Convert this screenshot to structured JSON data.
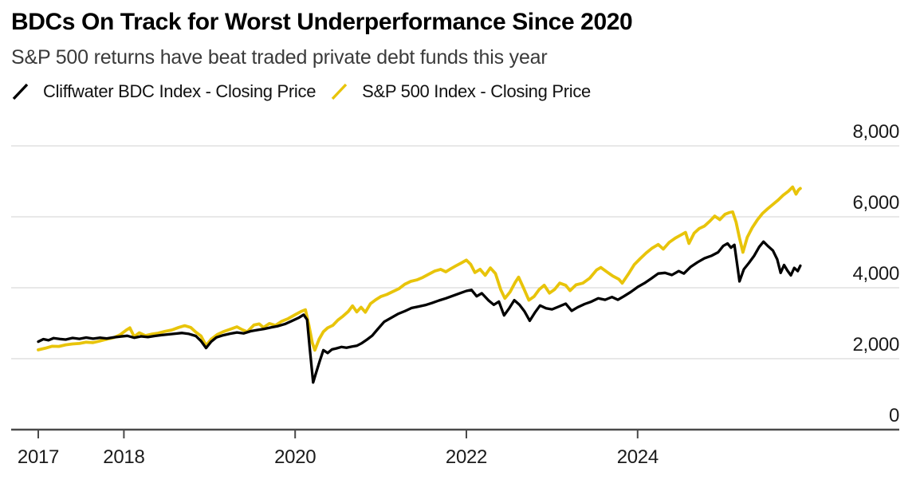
{
  "header": {
    "title": "BDCs On Track for Worst Underperformance Since 2020",
    "subtitle": "S&P 500 returns have beat traded private debt funds this year"
  },
  "legend": [
    {
      "label": "Cliffwater BDC Index - Closing Price",
      "color": "#000000"
    },
    {
      "label": "S&P 500 Index - Closing Price",
      "color": "#E8C40A"
    }
  ],
  "chart_data": {
    "type": "line",
    "title": "BDCs On Track for Worst Underperformance Since 2020",
    "subtitle": "S&P 500 returns have beat traded private debt funds this year",
    "xlabel": "",
    "ylabel": "",
    "grid": "horizontal",
    "legend_position": "top",
    "xlim": [
      2016.65,
      2027.05
    ],
    "ylim": [
      0,
      8000
    ],
    "axis_colors": {
      "gridline": "#DBDBDB",
      "baseline": "#4a4a4a",
      "tick_text": "#1b1b1b"
    },
    "y_ticks": [
      {
        "value": 0,
        "label": "0"
      },
      {
        "value": 2000,
        "label": "2,000"
      },
      {
        "value": 4000,
        "label": "4,000"
      },
      {
        "value": 6000,
        "label": "6,000"
      },
      {
        "value": 8000,
        "label": "8,000"
      }
    ],
    "x_ticks": [
      {
        "value": 2017,
        "label": "2017"
      },
      {
        "value": 2018,
        "label": "2018"
      },
      {
        "value": 2020,
        "label": "2020"
      },
      {
        "value": 2022,
        "label": "2022"
      },
      {
        "value": 2024,
        "label": "2024"
      }
    ],
    "series": [
      {
        "name": "S&P 500 Index - Closing Price",
        "color": "#E8C40A",
        "width": 3.8,
        "points": [
          [
            2017.0,
            2250
          ],
          [
            2017.08,
            2295
          ],
          [
            2017.16,
            2350
          ],
          [
            2017.24,
            2345
          ],
          [
            2017.32,
            2390
          ],
          [
            2017.4,
            2415
          ],
          [
            2017.48,
            2430
          ],
          [
            2017.56,
            2465
          ],
          [
            2017.64,
            2455
          ],
          [
            2017.72,
            2500
          ],
          [
            2017.8,
            2550
          ],
          [
            2017.88,
            2590
          ],
          [
            2017.96,
            2680
          ],
          [
            2018.03,
            2810
          ],
          [
            2018.07,
            2870
          ],
          [
            2018.12,
            2620
          ],
          [
            2018.18,
            2730
          ],
          [
            2018.25,
            2650
          ],
          [
            2018.32,
            2690
          ],
          [
            2018.4,
            2720
          ],
          [
            2018.48,
            2770
          ],
          [
            2018.56,
            2810
          ],
          [
            2018.64,
            2880
          ],
          [
            2018.71,
            2930
          ],
          [
            2018.78,
            2880
          ],
          [
            2018.84,
            2750
          ],
          [
            2018.9,
            2640
          ],
          [
            2018.96,
            2370
          ],
          [
            2019.02,
            2550
          ],
          [
            2019.09,
            2680
          ],
          [
            2019.16,
            2760
          ],
          [
            2019.24,
            2830
          ],
          [
            2019.32,
            2900
          ],
          [
            2019.38,
            2820
          ],
          [
            2019.44,
            2760
          ],
          [
            2019.52,
            2950
          ],
          [
            2019.58,
            2980
          ],
          [
            2019.63,
            2880
          ],
          [
            2019.7,
            2990
          ],
          [
            2019.77,
            2940
          ],
          [
            2019.84,
            3050
          ],
          [
            2019.92,
            3130
          ],
          [
            2020.0,
            3240
          ],
          [
            2020.07,
            3330
          ],
          [
            2020.12,
            3380
          ],
          [
            2020.16,
            2950
          ],
          [
            2020.2,
            2450
          ],
          [
            2020.23,
            2240
          ],
          [
            2020.28,
            2550
          ],
          [
            2020.33,
            2760
          ],
          [
            2020.38,
            2870
          ],
          [
            2020.44,
            2940
          ],
          [
            2020.5,
            3090
          ],
          [
            2020.56,
            3200
          ],
          [
            2020.62,
            3330
          ],
          [
            2020.67,
            3490
          ],
          [
            2020.72,
            3320
          ],
          [
            2020.77,
            3450
          ],
          [
            2020.82,
            3310
          ],
          [
            2020.88,
            3550
          ],
          [
            2020.94,
            3660
          ],
          [
            2021.0,
            3750
          ],
          [
            2021.07,
            3810
          ],
          [
            2021.14,
            3890
          ],
          [
            2021.21,
            3970
          ],
          [
            2021.28,
            4100
          ],
          [
            2021.35,
            4180
          ],
          [
            2021.42,
            4220
          ],
          [
            2021.49,
            4290
          ],
          [
            2021.56,
            4380
          ],
          [
            2021.63,
            4470
          ],
          [
            2021.7,
            4520
          ],
          [
            2021.76,
            4450
          ],
          [
            2021.82,
            4540
          ],
          [
            2021.88,
            4620
          ],
          [
            2021.94,
            4700
          ],
          [
            2022.0,
            4780
          ],
          [
            2022.05,
            4660
          ],
          [
            2022.1,
            4430
          ],
          [
            2022.16,
            4520
          ],
          [
            2022.22,
            4350
          ],
          [
            2022.28,
            4560
          ],
          [
            2022.34,
            4400
          ],
          [
            2022.4,
            3950
          ],
          [
            2022.45,
            3700
          ],
          [
            2022.51,
            3880
          ],
          [
            2022.57,
            4150
          ],
          [
            2022.61,
            4300
          ],
          [
            2022.67,
            3980
          ],
          [
            2022.73,
            3650
          ],
          [
            2022.79,
            3750
          ],
          [
            2022.85,
            3950
          ],
          [
            2022.91,
            4070
          ],
          [
            2022.97,
            3850
          ],
          [
            2023.03,
            3950
          ],
          [
            2023.09,
            4130
          ],
          [
            2023.16,
            4070
          ],
          [
            2023.21,
            3920
          ],
          [
            2023.28,
            4080
          ],
          [
            2023.36,
            4130
          ],
          [
            2023.44,
            4270
          ],
          [
            2023.52,
            4500
          ],
          [
            2023.57,
            4570
          ],
          [
            2023.64,
            4450
          ],
          [
            2023.71,
            4330
          ],
          [
            2023.78,
            4240
          ],
          [
            2023.82,
            4130
          ],
          [
            2023.89,
            4380
          ],
          [
            2023.96,
            4650
          ],
          [
            2024.03,
            4820
          ],
          [
            2024.1,
            4980
          ],
          [
            2024.17,
            5120
          ],
          [
            2024.24,
            5220
          ],
          [
            2024.3,
            5090
          ],
          [
            2024.37,
            5280
          ],
          [
            2024.44,
            5400
          ],
          [
            2024.5,
            5480
          ],
          [
            2024.56,
            5560
          ],
          [
            2024.6,
            5250
          ],
          [
            2024.66,
            5540
          ],
          [
            2024.72,
            5670
          ],
          [
            2024.78,
            5740
          ],
          [
            2024.84,
            5870
          ],
          [
            2024.9,
            6020
          ],
          [
            2024.96,
            5920
          ],
          [
            2025.02,
            6070
          ],
          [
            2025.07,
            6120
          ],
          [
            2025.11,
            6140
          ],
          [
            2025.15,
            5850
          ],
          [
            2025.19,
            5400
          ],
          [
            2025.23,
            5000
          ],
          [
            2025.28,
            5420
          ],
          [
            2025.34,
            5700
          ],
          [
            2025.4,
            5920
          ],
          [
            2025.46,
            6100
          ],
          [
            2025.52,
            6230
          ],
          [
            2025.58,
            6350
          ],
          [
            2025.64,
            6470
          ],
          [
            2025.7,
            6610
          ],
          [
            2025.76,
            6720
          ],
          [
            2025.81,
            6840
          ],
          [
            2025.85,
            6640
          ],
          [
            2025.88,
            6760
          ],
          [
            2025.9,
            6800
          ]
        ]
      },
      {
        "name": "Cliffwater BDC Index - Closing Price",
        "color": "#000000",
        "width": 3.3,
        "points": [
          [
            2017.0,
            2480
          ],
          [
            2017.06,
            2550
          ],
          [
            2017.12,
            2520
          ],
          [
            2017.18,
            2580
          ],
          [
            2017.25,
            2555
          ],
          [
            2017.32,
            2540
          ],
          [
            2017.4,
            2585
          ],
          [
            2017.48,
            2560
          ],
          [
            2017.56,
            2595
          ],
          [
            2017.64,
            2565
          ],
          [
            2017.72,
            2590
          ],
          [
            2017.8,
            2570
          ],
          [
            2017.88,
            2600
          ],
          [
            2017.96,
            2625
          ],
          [
            2018.04,
            2645
          ],
          [
            2018.12,
            2590
          ],
          [
            2018.2,
            2630
          ],
          [
            2018.28,
            2610
          ],
          [
            2018.36,
            2640
          ],
          [
            2018.44,
            2665
          ],
          [
            2018.52,
            2685
          ],
          [
            2018.6,
            2705
          ],
          [
            2018.68,
            2725
          ],
          [
            2018.76,
            2700
          ],
          [
            2018.84,
            2640
          ],
          [
            2018.9,
            2500
          ],
          [
            2018.96,
            2300
          ],
          [
            2019.02,
            2480
          ],
          [
            2019.08,
            2600
          ],
          [
            2019.16,
            2660
          ],
          [
            2019.24,
            2705
          ],
          [
            2019.32,
            2740
          ],
          [
            2019.4,
            2715
          ],
          [
            2019.48,
            2775
          ],
          [
            2019.56,
            2810
          ],
          [
            2019.64,
            2840
          ],
          [
            2019.72,
            2880
          ],
          [
            2019.8,
            2920
          ],
          [
            2019.88,
            2975
          ],
          [
            2019.96,
            3060
          ],
          [
            2020.04,
            3150
          ],
          [
            2020.1,
            3240
          ],
          [
            2020.14,
            3100
          ],
          [
            2020.17,
            2300
          ],
          [
            2020.21,
            1330
          ],
          [
            2020.25,
            1650
          ],
          [
            2020.29,
            1950
          ],
          [
            2020.33,
            2240
          ],
          [
            2020.38,
            2160
          ],
          [
            2020.43,
            2260
          ],
          [
            2020.48,
            2290
          ],
          [
            2020.54,
            2330
          ],
          [
            2020.6,
            2310
          ],
          [
            2020.66,
            2340
          ],
          [
            2020.72,
            2365
          ],
          [
            2020.78,
            2440
          ],
          [
            2020.84,
            2540
          ],
          [
            2020.9,
            2650
          ],
          [
            2020.96,
            2820
          ],
          [
            2021.04,
            3040
          ],
          [
            2021.12,
            3150
          ],
          [
            2021.2,
            3260
          ],
          [
            2021.28,
            3340
          ],
          [
            2021.36,
            3430
          ],
          [
            2021.44,
            3470
          ],
          [
            2021.52,
            3510
          ],
          [
            2021.6,
            3570
          ],
          [
            2021.68,
            3640
          ],
          [
            2021.76,
            3700
          ],
          [
            2021.84,
            3770
          ],
          [
            2021.92,
            3840
          ],
          [
            2022.0,
            3910
          ],
          [
            2022.06,
            3940
          ],
          [
            2022.12,
            3760
          ],
          [
            2022.18,
            3845
          ],
          [
            2022.26,
            3640
          ],
          [
            2022.32,
            3520
          ],
          [
            2022.38,
            3610
          ],
          [
            2022.44,
            3220
          ],
          [
            2022.5,
            3420
          ],
          [
            2022.56,
            3650
          ],
          [
            2022.62,
            3520
          ],
          [
            2022.68,
            3330
          ],
          [
            2022.74,
            3070
          ],
          [
            2022.8,
            3300
          ],
          [
            2022.86,
            3500
          ],
          [
            2022.93,
            3420
          ],
          [
            2023.0,
            3390
          ],
          [
            2023.08,
            3470
          ],
          [
            2023.16,
            3550
          ],
          [
            2023.23,
            3350
          ],
          [
            2023.3,
            3450
          ],
          [
            2023.38,
            3540
          ],
          [
            2023.46,
            3610
          ],
          [
            2023.54,
            3700
          ],
          [
            2023.62,
            3660
          ],
          [
            2023.7,
            3740
          ],
          [
            2023.77,
            3660
          ],
          [
            2023.84,
            3760
          ],
          [
            2023.92,
            3880
          ],
          [
            2024.0,
            4020
          ],
          [
            2024.08,
            4130
          ],
          [
            2024.16,
            4260
          ],
          [
            2024.24,
            4400
          ],
          [
            2024.32,
            4420
          ],
          [
            2024.4,
            4360
          ],
          [
            2024.48,
            4470
          ],
          [
            2024.54,
            4400
          ],
          [
            2024.62,
            4590
          ],
          [
            2024.7,
            4720
          ],
          [
            2024.78,
            4830
          ],
          [
            2024.86,
            4900
          ],
          [
            2024.94,
            5000
          ],
          [
            2025.0,
            5180
          ],
          [
            2025.05,
            5250
          ],
          [
            2025.09,
            5130
          ],
          [
            2025.13,
            5210
          ],
          [
            2025.16,
            4700
          ],
          [
            2025.19,
            4180
          ],
          [
            2025.24,
            4520
          ],
          [
            2025.3,
            4700
          ],
          [
            2025.36,
            4900
          ],
          [
            2025.42,
            5150
          ],
          [
            2025.47,
            5300
          ],
          [
            2025.52,
            5180
          ],
          [
            2025.58,
            5050
          ],
          [
            2025.63,
            4800
          ],
          [
            2025.67,
            4420
          ],
          [
            2025.71,
            4640
          ],
          [
            2025.75,
            4480
          ],
          [
            2025.79,
            4350
          ],
          [
            2025.83,
            4560
          ],
          [
            2025.87,
            4470
          ],
          [
            2025.9,
            4620
          ]
        ]
      }
    ]
  }
}
